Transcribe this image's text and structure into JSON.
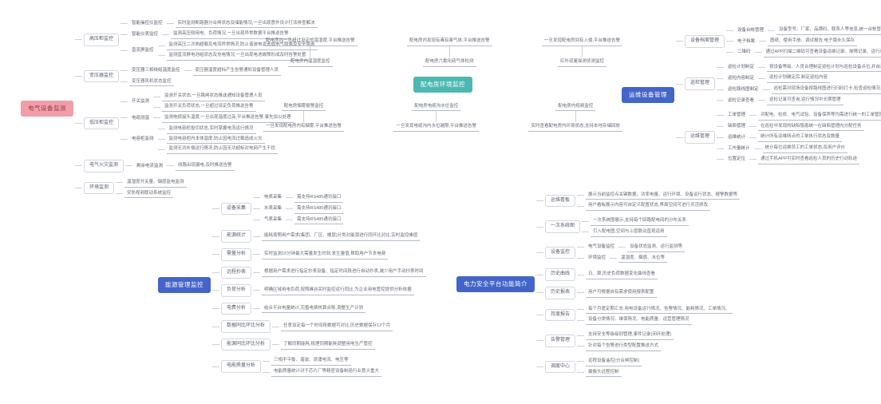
{
  "colors": {
    "line": "#ccd0d8",
    "leaf_underline": "#b5bac4",
    "topic_text": "#5d6370"
  },
  "maps": {
    "electrical": {
      "root": {
        "label": "电气设备监测",
        "bg": "#f19daa",
        "color": "#973a47"
      },
      "children": [
        {
          "label": "高压柜监控",
          "children": [
            {
              "label": "智能操控仪监控",
              "children": [
                {
                  "label": "实时监测断路器分合闸状态及储能情况,一旦出现意外设计打法排查解决"
                }
              ]
            },
            {
              "label": "智能仪表监控",
              "children": [
                {
                  "label": "监测高压侧用电、负荷情况,一旦出现异常数据平台推送告警"
                }
              ]
            },
            {
              "label": "直流屏监控",
              "children": [
                {
                  "label": "监测高压二次侧超载及电流异常情况,防止谐波电流造成电气隐患及安全隐患"
                },
                {
                  "label": "监测直流屏电池组状态及充电情况,一旦出现电池故障形成及时告警处置"
                }
              ]
            }
          ]
        },
        {
          "label": "变压器监控",
          "children": [
            {
              "label": "变压器三相绕组温度监控",
              "children": [
                {
                  "label": "变压器温度超标产生告警通知设备管理人员"
                }
              ]
            },
            {
              "label": "变压器风机状态监控"
            }
          ]
        },
        {
          "label": "低压柜监控",
          "children": [
            {
              "label": "开关监测",
              "children": [
                {
                  "label": "监测开关状态,一旦跳闸状态推送通知设备管理人员"
                },
                {
                  "label": "监测开关负荷状态,一旦超过设定负荷推送告警"
                }
              ]
            },
            {
              "label": "电缆测温",
              "children": [
                {
                  "label": "监测电缆接头温度,一旦出现温度过高,平台推送告警,事先加以处理"
                }
              ]
            },
            {
              "label": "电容柜监测",
              "children": [
                {
                  "label": "监测电容柜投切状态,实时掌握电流运行情况"
                },
                {
                  "label": "监测电容柜内本体温度,防止因电流过载造成火灾"
                },
                {
                  "label": "监测无功补偿运行情况,防止因无功超标对电网产生干扰"
                }
              ]
            }
          ]
        },
        {
          "label": "电气火灾监测",
          "children": [
            {
              "label": "剩余电流监测",
              "children": [
                {
                  "label": "线路出现漏电,及时推送告警"
                }
              ]
            }
          ]
        },
        {
          "label": "环境监测",
          "children": [
            {
              "label": "温湿度开关量、烟感监电监测"
            },
            {
              "label": "安防视频联动系统监控"
            }
          ]
        }
      ]
    },
    "distribution_env": {
      "root": {
        "label": "配电房环境监控",
        "bg": "#4cb9b1",
        "color": "#ffffff"
      },
      "top": [
        {
          "label": "配电房内温湿度监控",
          "leaf": "配电房内一旦超过设定的温湿度,平台推送告警"
        },
        {
          "label": "配电房六氟化硫气体检测",
          "leaf": "配电房内发现有毒有害气体,平台推送告警"
        },
        {
          "label": "红外双鉴探测侦测监控",
          "leaf": "一旦发现配电房间有入侵,平台推送告警"
        }
      ],
      "bottom": [
        {
          "label": "配电房烟雾报警监控",
          "leaf": "一旦发现配电房内有烟雾,平台推送告警"
        },
        {
          "label": "配电房电缆沟水位监控",
          "leaf": "一旦发现电缆沟内水位越限,平台推送告警"
        },
        {
          "label": "配电房内视频监控",
          "leaf": "实时查看配电房内环境状态,支持本地存储回放"
        }
      ]
    },
    "om_equipment": {
      "root": {
        "label": "运维设备管理",
        "bg": "#4365c9",
        "color": "#ffffff"
      },
      "children": [
        {
          "label": "设备档案管理",
          "children": [
            {
              "label": "设备台帐管理",
              "children": [
                {
                  "label": "设备型号、厂家、品牌码、联系人等信息,统一台帐管理"
                }
              ]
            },
            {
              "label": "电子档案",
              "children": [
                {
                  "label": "图纸、使用手册、调试报告,电子版永久保存"
                }
              ]
            },
            {
              "label": "二维码",
              "children": [
                {
                  "label": "通过APP扫描二维码可查看设备运维记录、故障记录、运行状态"
                }
              ]
            }
          ]
        },
        {
          "label": "巡检管理",
          "children": [
            {
              "label": "巡检计划制定",
              "children": [
                {
                  "label": "按设备等级、人员合理制定巡检计划与巡检设备点位,并自动提醒"
                }
              ]
            },
            {
              "label": "巡检内容制定",
              "children": [
                {
                  "label": "巡检计划确定后,制定巡检内容"
                }
              ]
            },
            {
              "label": "巡检路线图制定",
              "children": [
                {
                  "label": "巡检需对现场设备按路线图进行扫码打卡,检查巡检情况、杜绝漏检"
                }
              ]
            },
            {
              "label": "巡检记录查看",
              "children": [
                {
                  "label": "巡检记录可查询,运行情况中长期管理"
                }
              ]
            }
          ]
        },
        {
          "label": "运维管理",
          "children": [
            {
              "label": "工单管理",
              "children": [
                {
                  "label": "对配电、检修、电气试验、设备保养等均需进行统一的工单管理和下发"
                }
              ]
            },
            {
              "label": "缺陷管理",
              "children": [
                {
                  "label": "在巡检中发现的缺陷隐患统一在缺陷管理内分配任务"
                }
              ]
            },
            {
              "label": "运维统计",
              "children": [
                {
                  "label": "统计所有运维网点的工单执行状态及数量"
                }
              ]
            },
            {
              "label": "工作量统计",
              "children": [
                {
                  "label": "统计每位运维员工的工单状态,及用户评价"
                }
              ]
            },
            {
              "label": "位置定位",
              "children": [
                {
                  "label": "通过手机APP可实时查看巡检人员的历史行动轨迹"
                }
              ]
            }
          ]
        }
      ]
    },
    "energy_mgmt": {
      "root": {
        "label": "能源管理监控",
        "bg": "#4365c9",
        "color": "#ffffff"
      },
      "children": [
        {
          "label": "设备采集",
          "children": [
            {
              "label": "电表采集",
              "children": [
                {
                  "label": "需支持RS485通讯接口"
                }
              ]
            },
            {
              "label": "水表采集",
              "children": [
                {
                  "label": "需支持RS485通讯接口"
                }
              ]
            },
            {
              "label": "气表采集",
              "children": [
                {
                  "label": "需支持RS485通讯接口"
                }
              ]
            }
          ]
        },
        {
          "label": "能源统计",
          "children": [
            {
              "label": "能耗按照用户需求(集团、厂区、楼层)分类对能源进行同环比对比,实时监控峰值"
            }
          ]
        },
        {
          "label": "需量分析",
          "children": [
            {
              "label": "实时监测15分钟最大需量发生时刻,发生量值,帮助用户节本电费"
            }
          ]
        },
        {
          "label": "远程抄表",
          "children": [
            {
              "label": "根据用户需求进行指定抄表设备、指定时间段进行自动抄表,减少用户手动抄表时间"
            }
          ]
        },
        {
          "label": "负荷分析",
          "children": [
            {
              "label": "明确区域用电负荷,按照峰谷实时监控运行同比,为企业用电管控提供分析依据"
            }
          ]
        },
        {
          "label": "电费分析",
          "children": [
            {
              "label": "结合平台电量统计,完善电费核算合账,调整生产计划"
            }
          ]
        },
        {
          "label": "数据同比环比分析",
          "children": [
            {
              "label": "任意设定每一个时间段数据可对比,历史数据保存12个月"
            }
          ]
        },
        {
          "label": "能源同比环比分析",
          "children": [
            {
              "label": "了解同期能耗,梳理同期能耗调整用电生产管控"
            }
          ]
        },
        {
          "label": "电能质量分析",
          "children": [
            {
              "label": "三相不平衡、谐波、浪涌电流、电压等"
            },
            {
              "label": "电能质量统计对于芯片厂等精密设备制造行业意义重大"
            }
          ]
        }
      ]
    },
    "platform_intro": {
      "root": {
        "label": "电力安全平台功能简介",
        "bg": "#4365c9",
        "color": "#ffffff"
      },
      "children": [
        {
          "label": "运维看板",
          "children": [
            {
              "label": "展示当前监控点关键数据、功率电量、运行环境、设备运行状态、报警数据等"
            },
            {
              "label": "用户看板展示内容可自定义配置状态,界面空间可进行灵活修改"
            }
          ]
        },
        {
          "label": "一次系统图",
          "children": [
            {
              "label": "一次系统图展示,支持每个回路配电间的分布关系"
            },
            {
              "label": "引入配电图,空间与上层联动直观运用"
            }
          ]
        },
        {
          "label": "设备监控",
          "children": [
            {
              "label": "电气设备监控",
              "children": [
                {
                  "label": "设备状态监测、运行监测等"
                }
              ]
            },
            {
              "label": "环境监控",
              "children": [
                {
                  "label": "温湿度、烟感、水位等"
                }
              ]
            }
          ]
        },
        {
          "label": "历史曲线",
          "children": [
            {
              "label": "日、周,历史负荷数据变化曲线查看"
            }
          ]
        },
        {
          "label": "历史报表",
          "children": [
            {
              "label": "用户可根据自有需求使用报表配置"
            }
          ]
        },
        {
          "label": "月度报告",
          "children": [
            {
              "label": "每个月度定期汇总:用电设备运行情况、告警情况、能耗情况、工单情况、"
            },
            {
              "label": "设备分类情况、维保情况、电能质量、运营管理情况"
            }
          ]
        },
        {
          "label": "告警管理",
          "children": [
            {
              "label": "支持安全等级级别管理,事件记录(闭环处理)"
            },
            {
              "label": "针对每个告警进行类型配置推送方式"
            }
          ]
        },
        {
          "label": "调度中心",
          "children": [
            {
              "label": "远程设备遥控(分合闸控制)"
            },
            {
              "label": "摄像头远程控制"
            }
          ]
        }
      ]
    }
  }
}
